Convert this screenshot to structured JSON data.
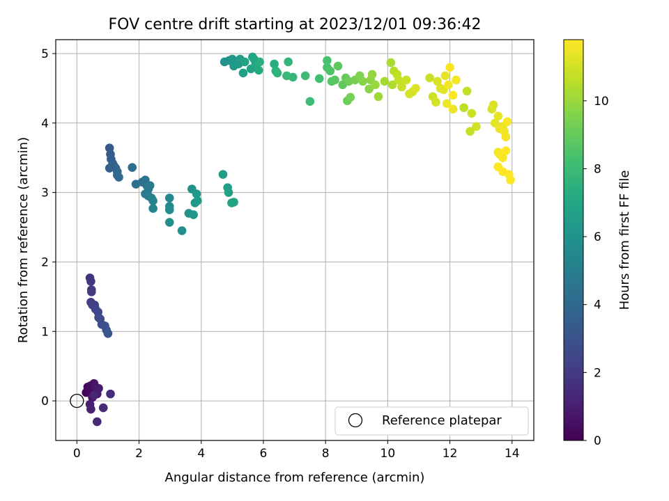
{
  "chart_data": {
    "type": "scatter",
    "title": "FOV centre drift starting at 2023/12/01 09:36:42",
    "xlabel": "Angular distance from reference (arcmin)",
    "ylabel": "Rotation from reference (arcmin)",
    "xlim": [
      -0.68,
      14.7
    ],
    "ylim": [
      -0.57,
      5.2
    ],
    "xticks": [
      0,
      2,
      4,
      6,
      8,
      10,
      12,
      14
    ],
    "yticks": [
      0,
      1,
      2,
      3,
      4,
      5
    ],
    "grid": true,
    "legend": {
      "placement": "bottom-right",
      "label": "Reference platepar"
    },
    "reference_point": {
      "x": 0,
      "y": 0
    },
    "colorbar": {
      "label": "Hours from first FF file",
      "colormap": "viridis",
      "min": 0,
      "max": 11.8,
      "ticks": [
        0,
        2,
        4,
        6,
        8,
        10
      ]
    },
    "points": [
      [
        0.3,
        0.12,
        0.1
      ],
      [
        0.35,
        0.2,
        0.2
      ],
      [
        0.4,
        0.15,
        0.3
      ],
      [
        0.45,
        0.22,
        0.4
      ],
      [
        0.5,
        0.05,
        0.5
      ],
      [
        0.55,
        0.25,
        0.6
      ],
      [
        0.6,
        0.2,
        0.7
      ],
      [
        0.65,
        0.1,
        0.8
      ],
      [
        0.7,
        0.18,
        0.9
      ],
      [
        0.42,
        -0.05,
        1.0
      ],
      [
        0.45,
        -0.12,
        1.1
      ],
      [
        0.55,
        0.08,
        1.2
      ],
      [
        0.65,
        -0.3,
        1.3
      ],
      [
        0.85,
        -0.1,
        1.4
      ],
      [
        1.08,
        0.1,
        1.5
      ],
      [
        0.42,
        1.77,
        1.7
      ],
      [
        0.45,
        1.72,
        1.8
      ],
      [
        0.47,
        1.6,
        1.9
      ],
      [
        0.47,
        1.57,
        2.0
      ],
      [
        0.45,
        1.42,
        2.1
      ],
      [
        0.5,
        1.38,
        2.2
      ],
      [
        0.57,
        1.38,
        2.3
      ],
      [
        0.6,
        1.32,
        2.4
      ],
      [
        0.68,
        1.28,
        2.5
      ],
      [
        0.7,
        1.2,
        2.6
      ],
      [
        0.75,
        1.18,
        2.7
      ],
      [
        0.8,
        1.1,
        2.8
      ],
      [
        0.9,
        1.08,
        2.9
      ],
      [
        0.95,
        1.02,
        3.0
      ],
      [
        1.0,
        0.97,
        3.1
      ],
      [
        1.05,
        3.64,
        3.3
      ],
      [
        1.08,
        3.55,
        3.4
      ],
      [
        1.1,
        3.48,
        3.5
      ],
      [
        1.15,
        3.42,
        3.6
      ],
      [
        1.2,
        3.38,
        3.7
      ],
      [
        1.25,
        3.35,
        3.8
      ],
      [
        1.3,
        3.3,
        3.9
      ],
      [
        1.3,
        3.25,
        4.0
      ],
      [
        1.35,
        3.22,
        4.1
      ],
      [
        1.05,
        3.35,
        3.6
      ],
      [
        1.78,
        3.36,
        4.2
      ],
      [
        1.9,
        3.12,
        4.3
      ],
      [
        2.1,
        3.15,
        4.4
      ],
      [
        2.2,
        3.18,
        4.5
      ],
      [
        2.25,
        3.1,
        4.6
      ],
      [
        2.3,
        3.05,
        4.7
      ],
      [
        2.35,
        3.1,
        4.8
      ],
      [
        2.2,
        2.98,
        4.9
      ],
      [
        2.3,
        2.95,
        5.0
      ],
      [
        2.4,
        2.92,
        5.1
      ],
      [
        2.45,
        2.88,
        5.2
      ],
      [
        2.45,
        2.77,
        5.3
      ],
      [
        2.98,
        2.92,
        5.4
      ],
      [
        2.98,
        2.8,
        5.5
      ],
      [
        2.98,
        2.75,
        5.6
      ],
      [
        2.98,
        2.57,
        5.7
      ],
      [
        3.38,
        2.45,
        5.8
      ],
      [
        3.7,
        3.05,
        5.9
      ],
      [
        3.6,
        2.7,
        6.0
      ],
      [
        3.75,
        2.68,
        6.1
      ],
      [
        3.8,
        2.85,
        6.2
      ],
      [
        3.85,
        2.98,
        6.3
      ],
      [
        3.88,
        2.88,
        6.4
      ],
      [
        4.7,
        3.26,
        6.5
      ],
      [
        4.85,
        3.07,
        6.6
      ],
      [
        4.88,
        3.0,
        6.7
      ],
      [
        4.98,
        2.85,
        6.8
      ],
      [
        5.05,
        2.86,
        6.9
      ],
      [
        4.75,
        4.88,
        6.0
      ],
      [
        4.9,
        4.9,
        6.1
      ],
      [
        5.0,
        4.92,
        6.2
      ],
      [
        5.05,
        4.82,
        6.3
      ],
      [
        5.2,
        4.85,
        6.4
      ],
      [
        5.25,
        4.92,
        6.5
      ],
      [
        5.35,
        4.72,
        6.6
      ],
      [
        5.4,
        4.88,
        6.7
      ],
      [
        5.6,
        4.78,
        6.8
      ],
      [
        5.65,
        4.95,
        6.9
      ],
      [
        5.7,
        4.92,
        7.0
      ],
      [
        5.75,
        4.85,
        7.1
      ],
      [
        5.85,
        4.76,
        7.2
      ],
      [
        5.88,
        4.88,
        7.3
      ],
      [
        6.35,
        4.85,
        7.4
      ],
      [
        6.4,
        4.75,
        7.5
      ],
      [
        6.45,
        4.72,
        7.6
      ],
      [
        6.8,
        4.88,
        7.7
      ],
      [
        6.95,
        4.66,
        7.8
      ],
      [
        6.75,
        4.68,
        7.9
      ],
      [
        7.35,
        4.68,
        8.0
      ],
      [
        7.5,
        4.31,
        8.1
      ],
      [
        7.8,
        4.64,
        8.2
      ],
      [
        8.05,
        4.9,
        8.3
      ],
      [
        8.05,
        4.8,
        8.4
      ],
      [
        8.15,
        4.75,
        8.5
      ],
      [
        8.2,
        4.6,
        8.6
      ],
      [
        8.3,
        4.62,
        8.7
      ],
      [
        8.4,
        4.82,
        8.8
      ],
      [
        8.55,
        4.55,
        8.9
      ],
      [
        8.65,
        4.65,
        9.0
      ],
      [
        8.7,
        4.32,
        9.1
      ],
      [
        8.75,
        4.6,
        9.2
      ],
      [
        8.8,
        4.37,
        9.3
      ],
      [
        8.95,
        4.62,
        9.4
      ],
      [
        9.1,
        4.68,
        9.5
      ],
      [
        9.2,
        4.6,
        9.6
      ],
      [
        9.4,
        4.49,
        9.7
      ],
      [
        9.45,
        4.62,
        9.8
      ],
      [
        9.5,
        4.7,
        9.9
      ],
      [
        9.6,
        4.55,
        10.0
      ],
      [
        9.7,
        4.38,
        10.1
      ],
      [
        9.9,
        4.6,
        10.2
      ],
      [
        10.1,
        4.87,
        10.3
      ],
      [
        10.15,
        4.55,
        10.4
      ],
      [
        10.2,
        4.75,
        10.5
      ],
      [
        10.3,
        4.7,
        10.6
      ],
      [
        10.35,
        4.62,
        10.7
      ],
      [
        10.45,
        4.52,
        10.8
      ],
      [
        10.6,
        4.62,
        10.9
      ],
      [
        10.7,
        4.42,
        11.0
      ],
      [
        10.8,
        4.45,
        11.1
      ],
      [
        10.9,
        4.5,
        11.2
      ],
      [
        11.35,
        4.65,
        10.8
      ],
      [
        11.45,
        4.38,
        10.9
      ],
      [
        11.55,
        4.3,
        11.0
      ],
      [
        11.6,
        4.6,
        11.1
      ],
      [
        11.7,
        4.5,
        11.2
      ],
      [
        11.8,
        4.48,
        11.3
      ],
      [
        11.85,
        4.68,
        11.4
      ],
      [
        11.9,
        4.28,
        11.5
      ],
      [
        11.95,
        4.55,
        11.6
      ],
      [
        12.0,
        4.8,
        11.7
      ],
      [
        12.1,
        4.4,
        11.8
      ],
      [
        12.2,
        4.62,
        11.6
      ],
      [
        12.1,
        4.2,
        11.5
      ],
      [
        12.45,
        4.22,
        10.6
      ],
      [
        12.55,
        4.46,
        10.7
      ],
      [
        12.65,
        3.88,
        10.8
      ],
      [
        12.7,
        4.14,
        10.9
      ],
      [
        12.85,
        3.95,
        11.0
      ],
      [
        13.35,
        4.2,
        11.1
      ],
      [
        13.4,
        4.26,
        11.2
      ],
      [
        13.45,
        4.0,
        11.3
      ],
      [
        13.55,
        4.1,
        11.4
      ],
      [
        13.6,
        3.92,
        11.5
      ],
      [
        13.7,
        3.95,
        11.5
      ],
      [
        13.75,
        3.88,
        11.6
      ],
      [
        13.8,
        3.8,
        11.6
      ],
      [
        13.85,
        4.02,
        11.7
      ],
      [
        13.55,
        3.58,
        11.7
      ],
      [
        13.6,
        3.55,
        11.7
      ],
      [
        13.7,
        3.5,
        11.7
      ],
      [
        13.8,
        3.6,
        11.8
      ],
      [
        13.55,
        3.37,
        11.8
      ],
      [
        13.7,
        3.3,
        11.8
      ],
      [
        13.9,
        3.26,
        11.8
      ],
      [
        13.95,
        3.18,
        11.8
      ]
    ]
  }
}
